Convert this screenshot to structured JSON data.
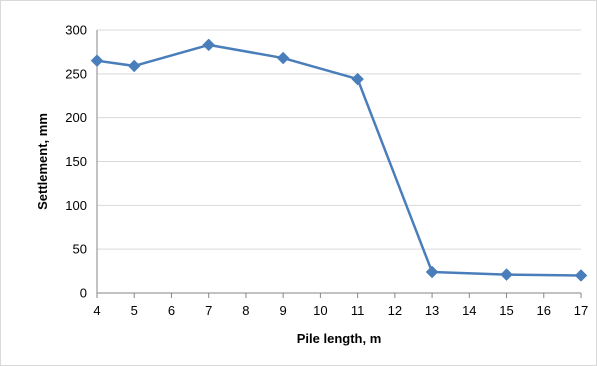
{
  "chart_data": {
    "type": "line",
    "title": "",
    "xlabel": "Pile length, m",
    "ylabel": "Settlement, mm",
    "x": [
      4,
      5,
      7,
      9,
      11,
      13,
      15,
      17
    ],
    "series": [
      {
        "values": [
          265,
          259,
          283,
          268,
          244,
          24,
          21,
          20
        ]
      }
    ],
    "xlim": [
      4,
      17
    ],
    "ylim": [
      0,
      300
    ],
    "xticks": [
      "4",
      "5",
      "6",
      "7",
      "8",
      "9",
      "10",
      "11",
      "12",
      "13",
      "14",
      "15",
      "16",
      "17"
    ],
    "yticks": [
      "0",
      "50",
      "100",
      "150",
      "200",
      "250",
      "300"
    ],
    "grid": "horizontal",
    "legend": "none",
    "line_color": "#4a7ebb",
    "marker": "diamond"
  }
}
